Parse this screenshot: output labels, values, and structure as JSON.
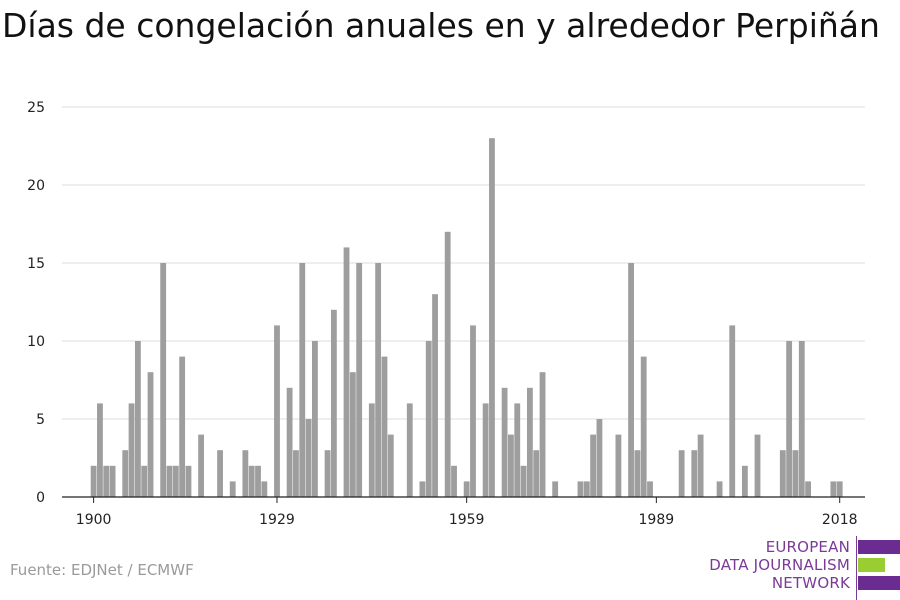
{
  "title": "Días de congelación anuales en y alrededor Perpiñán",
  "source": "Fuente: EDJNet / ECMWF",
  "logo": {
    "lines": [
      "EUROPEAN",
      "DATA JOURNALISM",
      "NETWORK"
    ],
    "text_color": "#7b3a96",
    "bar_colors": [
      "#6b2c91",
      "#9acd32",
      "#6b2c91"
    ]
  },
  "chart_data": {
    "type": "bar",
    "title": "Días de congelación anuales en y alrededor Perpiñán",
    "xlabel": "",
    "ylabel": "",
    "xlim": [
      1895,
      2022
    ],
    "ylim": [
      0,
      25
    ],
    "yticks": [
      0,
      5,
      10,
      15,
      20,
      25
    ],
    "xticks": [
      1900,
      1929,
      1959,
      1989,
      2018
    ],
    "grid": true,
    "bar_color": "#9e9e9e",
    "x": [
      1900,
      1901,
      1902,
      1903,
      1904,
      1905,
      1906,
      1907,
      1908,
      1909,
      1910,
      1911,
      1912,
      1913,
      1914,
      1915,
      1916,
      1917,
      1918,
      1919,
      1920,
      1921,
      1922,
      1923,
      1924,
      1925,
      1926,
      1927,
      1928,
      1929,
      1930,
      1931,
      1932,
      1933,
      1934,
      1935,
      1936,
      1937,
      1938,
      1939,
      1940,
      1941,
      1942,
      1943,
      1944,
      1945,
      1946,
      1947,
      1948,
      1949,
      1950,
      1951,
      1952,
      1953,
      1954,
      1955,
      1956,
      1957,
      1958,
      1959,
      1960,
      1961,
      1962,
      1963,
      1964,
      1965,
      1966,
      1967,
      1968,
      1969,
      1970,
      1971,
      1972,
      1973,
      1974,
      1975,
      1976,
      1977,
      1978,
      1979,
      1980,
      1981,
      1982,
      1983,
      1984,
      1985,
      1986,
      1987,
      1988,
      1989,
      1990,
      1991,
      1992,
      1993,
      1994,
      1995,
      1996,
      1997,
      1998,
      1999,
      2000,
      2001,
      2002,
      2003,
      2004,
      2005,
      2006,
      2007,
      2008,
      2009,
      2010,
      2011,
      2012,
      2013,
      2014,
      2015,
      2016,
      2017,
      2018
    ],
    "values": [
      2,
      6,
      2,
      2,
      0,
      3,
      6,
      10,
      2,
      8,
      0,
      15,
      2,
      2,
      9,
      2,
      0,
      4,
      0,
      0,
      3,
      0,
      1,
      0,
      3,
      2,
      2,
      1,
      0,
      11,
      0,
      7,
      3,
      15,
      5,
      10,
      0,
      3,
      12,
      0,
      16,
      8,
      15,
      0,
      6,
      15,
      9,
      4,
      0,
      0,
      6,
      0,
      1,
      10,
      13,
      0,
      17,
      2,
      0,
      1,
      11,
      0,
      6,
      23,
      0,
      7,
      4,
      6,
      2,
      7,
      3,
      8,
      0,
      1,
      0,
      0,
      0,
      1,
      1,
      4,
      5,
      0,
      0,
      4,
      0,
      15,
      3,
      9,
      1,
      0,
      0,
      0,
      0,
      3,
      0,
      3,
      4,
      0,
      0,
      1,
      0,
      11,
      0,
      2,
      0,
      4,
      0,
      0,
      0,
      3,
      10,
      3,
      10,
      1,
      0,
      0,
      0,
      1,
      1
    ]
  }
}
